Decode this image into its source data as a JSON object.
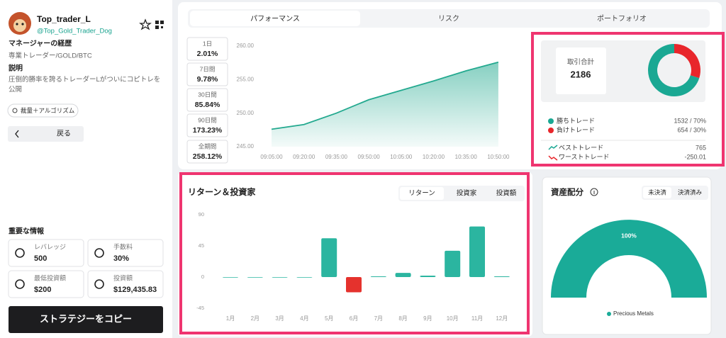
{
  "profile": {
    "name": "Top_trader_L",
    "handle": "@Top_Gold_Trader_Dog",
    "background_title": "マネージャーの経歴",
    "background": "専業トレーダー/GOLD/BTC",
    "description_title": "説明",
    "description": "圧倒的勝率を誇るトレーダーLがついにコピトレを公開",
    "tag": "裁量＋アルゴリズム",
    "back_button": "戻る"
  },
  "key_info": {
    "title": "重要な情報",
    "items": [
      {
        "label": "レバレッジ",
        "value": "500"
      },
      {
        "label": "手数料",
        "value": "30%"
      },
      {
        "label": "最低投資額",
        "value": "$200"
      },
      {
        "label": "投資額",
        "value": "$129,435.83"
      }
    ]
  },
  "copy_button": "ストラテジーをコピー",
  "tabs": [
    "パフォーマンス",
    "リスク",
    "ポートフォリオ"
  ],
  "periods": [
    {
      "label": "1日",
      "value": "2.01%"
    },
    {
      "label": "7日間",
      "value": "9.78%"
    },
    {
      "label": "30日間",
      "value": "85.84%"
    },
    {
      "label": "90日間",
      "value": "173.23%"
    },
    {
      "label": "全期間",
      "value": "258.12%"
    }
  ],
  "performance_chart": {
    "type": "line",
    "x": [
      "09:05:00",
      "09:20:00",
      "09:35:00",
      "09:50:00",
      "10:05:00",
      "10:20:00",
      "10:35:00",
      "10:50:00"
    ],
    "values": [
      247.6,
      248.3,
      250,
      252,
      253.4,
      254.8,
      256.3,
      257.6
    ],
    "color": "#23a98f",
    "ylim": [
      245,
      260
    ],
    "yticks": [
      {
        "value": 260,
        "label": "260.00"
      },
      {
        "value": 255,
        "label": "255.00"
      },
      {
        "value": 250,
        "label": "250.00"
      },
      {
        "value": 245,
        "label": "245.00"
      }
    ]
  },
  "trade_stats": {
    "type": "donut",
    "total_label": "取引合計",
    "total": 2186,
    "losses": {
      "label": "負けトレード",
      "value": 654,
      "value_label": "654 / 30%",
      "color": "#e8262b"
    },
    "wins": {
      "label": "勝ちトレード",
      "value": 1532,
      "value_label": "1532 / 70%",
      "color": "#1aa893"
    },
    "best": {
      "label": "ベストトレード",
      "value": 765
    },
    "worst": {
      "label": "ワーストトレード",
      "value": -250.01
    }
  },
  "returns_chart": {
    "type": "bar",
    "title": "リターン＆投資家",
    "tabs": [
      "リターン",
      "投資家",
      "投資額"
    ],
    "categories": [
      "1月",
      "2月",
      "3月",
      "4月",
      "5月",
      "6月",
      "7月",
      "8月",
      "9月",
      "10月",
      "11月",
      "12月"
    ],
    "values": [
      0,
      0,
      0,
      0,
      56,
      -22,
      1,
      6,
      2,
      38,
      73,
      1
    ],
    "colors": {
      "positive": "#2bb5a0",
      "negative": "#e5322d"
    },
    "ylim": [
      -45,
      90
    ],
    "yticks": [
      90,
      45,
      0,
      -45
    ]
  },
  "allocation": {
    "type": "gauge",
    "title": "資産配分",
    "tabs": [
      "未決済",
      "決済済み"
    ],
    "series": [
      {
        "name": "Precious Metals",
        "value": 100,
        "value_label": "100%",
        "color": "#1aab98"
      }
    ]
  }
}
